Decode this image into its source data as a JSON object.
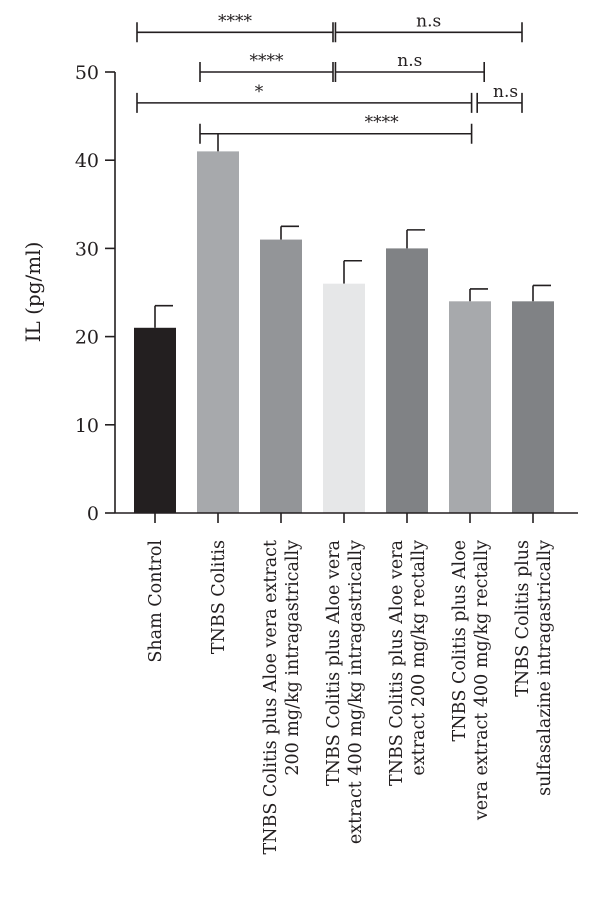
{
  "chart_data": {
    "type": "bar",
    "ylabel": "IL (pg/ml)",
    "xlabel": "",
    "ylim": [
      0,
      50
    ],
    "yticks": [
      0,
      10,
      20,
      30,
      40,
      50
    ],
    "grid": false,
    "categories": [
      [
        "Sham Control"
      ],
      [
        "TNBS Colitis"
      ],
      [
        "TNBS Colitis plus Aloe vera extract",
        "200 mg/kg intragastrically"
      ],
      [
        "TNBS Colitis plus Aloe vera",
        "extract 400 mg/kg intragastrically"
      ],
      [
        "TNBS Colitis plus Aloe vera",
        "extract 200 mg/kg rectally"
      ],
      [
        "TNBS Colitis plus Aloe",
        "vera extract 400 mg/kg rectally"
      ],
      [
        "TNBS Colitis plus",
        "sulfasalazine intragastrically"
      ]
    ],
    "values": [
      21,
      41,
      31,
      26,
      30,
      24,
      24
    ],
    "errors": [
      2.5,
      2.0,
      1.5,
      2.6,
      2.1,
      1.4,
      1.8
    ],
    "bar_colors": [
      "#231f20",
      "#a7a9ac",
      "#939598",
      "#e6e7e8",
      "#808285",
      "#a7a9ac",
      "#808285"
    ],
    "significance": [
      {
        "from": 0,
        "to": 3,
        "label": "****",
        "y": 54.5,
        "label_pos": "center"
      },
      {
        "from": 3.15,
        "to": 6,
        "label": "n.s",
        "y": 54.5,
        "label_pos": "center"
      },
      {
        "from": 1,
        "to": 3,
        "label": "****",
        "y": 50.0,
        "label_pos": "center"
      },
      {
        "from": 3.15,
        "to": 5.4,
        "label": "n.s",
        "y": 50.0,
        "label_pos": "center"
      },
      {
        "from": 0,
        "to": 5.2,
        "label": "*",
        "y": 46.5,
        "label_pos": "start"
      },
      {
        "from": 5.4,
        "to": 6,
        "label": "n.s",
        "y": 46.5,
        "label_pos": "end"
      },
      {
        "from": 1,
        "to": 5.2,
        "label": "****",
        "y": 43.0,
        "label_pos": "end"
      }
    ]
  }
}
